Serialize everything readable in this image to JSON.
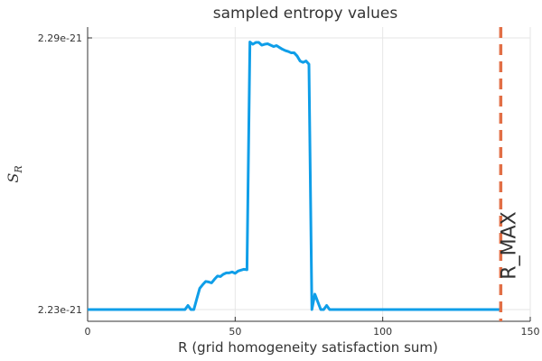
{
  "chart_data": {
    "type": "line",
    "title": "sampled entropy values",
    "xlabel": "R (grid homogeneity satisfaction sum)",
    "ylabel_main": "S",
    "ylabel_sub": "R",
    "xlim": [
      0,
      150
    ],
    "ylim": [
      2.23e-21,
      2.29e-21
    ],
    "x_ticks": [
      0,
      50,
      100,
      150
    ],
    "x_tick_labels": [
      "0",
      "50",
      "100",
      "150"
    ],
    "y_ticks": [
      2.23e-21,
      2.29e-21
    ],
    "y_tick_labels": [
      "2.23e-21",
      "2.29e-21"
    ],
    "grid": true,
    "series": [
      {
        "color": "#0f9ee8",
        "x": [
          0,
          10,
          20,
          30,
          33,
          34,
          35,
          36,
          37,
          38,
          39,
          40,
          41,
          42,
          43,
          44,
          45,
          46,
          47,
          48,
          49,
          50,
          51,
          52,
          53,
          54,
          55,
          56,
          57,
          58,
          59,
          60,
          61,
          62,
          63,
          64,
          65,
          66,
          67,
          68,
          69,
          70,
          71,
          72,
          73,
          74,
          75,
          76,
          77,
          78,
          79,
          80,
          81,
          82,
          90,
          100,
          110,
          120,
          130,
          140
        ],
        "y": [
          2.23e-21,
          2.23e-21,
          2.23e-21,
          2.23e-21,
          2.23e-21,
          2.2309e-21,
          2.23e-21,
          2.23e-21,
          2.2324e-21,
          2.2347e-21,
          2.2355e-21,
          2.2362e-21,
          2.2361e-21,
          2.2359e-21,
          2.2367e-21,
          2.2374e-21,
          2.2373e-21,
          2.2378e-21,
          2.2381e-21,
          2.2381e-21,
          2.2383e-21,
          2.238e-21,
          2.2385e-21,
          2.2387e-21,
          2.2389e-21,
          2.2388e-21,
          2.2891e-21,
          2.2886e-21,
          2.289e-21,
          2.289e-21,
          2.2884e-21,
          2.2886e-21,
          2.2887e-21,
          2.2884e-21,
          2.2881e-21,
          2.2883e-21,
          2.2879e-21,
          2.2875e-21,
          2.2872e-21,
          2.287e-21,
          2.2867e-21,
          2.2867e-21,
          2.286e-21,
          2.2849e-21,
          2.2846e-21,
          2.2849e-21,
          2.2842e-21,
          2.23e-21,
          2.2334e-21,
          2.2317e-21,
          2.23e-21,
          2.23e-21,
          2.2309e-21,
          2.23e-21,
          2.23e-21,
          2.23e-21,
          2.23e-21,
          2.23e-21,
          2.23e-21,
          2.23e-21
        ]
      },
      {
        "name": "R_MAX",
        "type": "vline",
        "color": "#e26f46",
        "x": 140
      }
    ],
    "annotation": {
      "text": "R_MAX",
      "x": 140,
      "rotation": -90
    }
  }
}
